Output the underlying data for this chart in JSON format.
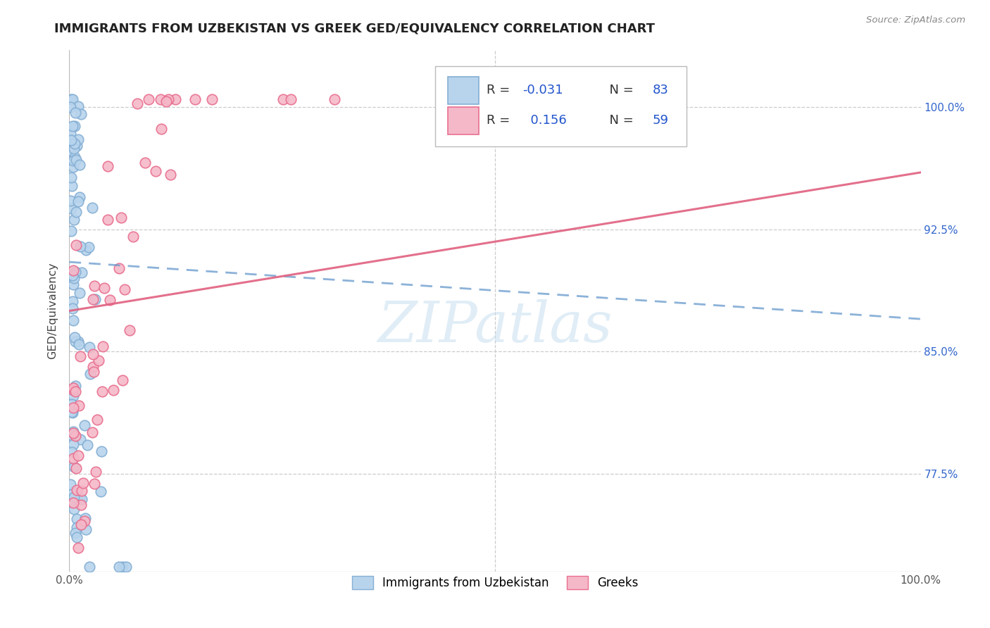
{
  "title": "IMMIGRANTS FROM UZBEKISTAN VS GREEK GED/EQUIVALENCY CORRELATION CHART",
  "source": "Source: ZipAtlas.com",
  "ylabel": "GED/Equivalency",
  "ytick_labels": [
    "100.0%",
    "92.5%",
    "85.0%",
    "77.5%"
  ],
  "ytick_values": [
    1.0,
    0.925,
    0.85,
    0.775
  ],
  "legend_label1": "Immigrants from Uzbekistan",
  "legend_label2": "Greeks",
  "R1": -0.031,
  "N1": 83,
  "R2": 0.156,
  "N2": 59,
  "color_uzbek_fill": "#b8d4ed",
  "color_uzbek_edge": "#85afd4",
  "color_greek_fill": "#f5b8c8",
  "color_greek_edge": "#e87090",
  "color_uzbek_line": "#6699cc",
  "color_greek_line": "#e06080",
  "xmin": 0.0,
  "xmax": 1.0,
  "ymin": 0.715,
  "ymax": 1.035,
  "uzbek_trend_y0": 0.905,
  "uzbek_trend_y1": 0.87,
  "greek_trend_y0": 0.875,
  "greek_trend_y1": 0.96
}
